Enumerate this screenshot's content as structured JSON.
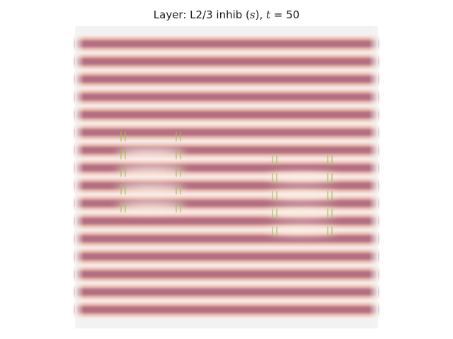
{
  "chart_data": {
    "type": "heatmap",
    "title": {
      "prefix": "Layer: L2/3 inhib (",
      "var": "s",
      "mid": "), ",
      "time_var": "t",
      "eq": " = 50"
    },
    "xlabel": "",
    "ylabel": "",
    "axes_visible": false,
    "grid": false,
    "stripes": {
      "count": 16,
      "color": "#b06a7f"
    },
    "hotspots": [
      {
        "col": 0.25,
        "row": 0.48
      },
      {
        "col": 0.75,
        "row": 0.56
      }
    ],
    "colors": {
      "dark": "#b06a7f",
      "mid": "#f0b9a8",
      "light": "#fdf0e6",
      "green": "#9bbf5a"
    }
  }
}
